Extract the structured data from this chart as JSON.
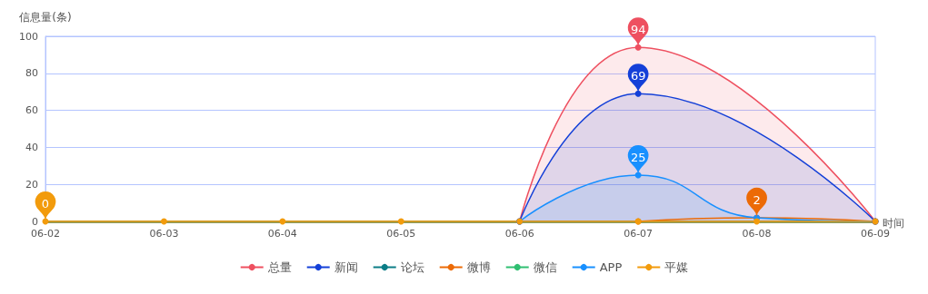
{
  "chart_data": {
    "type": "line",
    "xlabel": "时间",
    "ylabel": "信息量(条)",
    "categories": [
      "06-02",
      "06-03",
      "06-04",
      "06-05",
      "06-06",
      "06-07",
      "06-08",
      "06-09"
    ],
    "ylim": [
      0,
      100
    ],
    "yticks": [
      0,
      20,
      40,
      60,
      80,
      100
    ],
    "grid": "y",
    "legend": "bottom",
    "marker": "circle",
    "line_style": "solid",
    "series": [
      {
        "name": "总量",
        "type": "area",
        "color": "#ee5060",
        "values": [
          null,
          null,
          null,
          null,
          0,
          94,
          null,
          0
        ],
        "value_labels": [
          null,
          null,
          null,
          null,
          null,
          "94",
          null,
          null
        ]
      },
      {
        "name": "新闻",
        "type": "area",
        "color": "#1440d8",
        "values": [
          null,
          null,
          null,
          null,
          0,
          69,
          null,
          0
        ],
        "value_labels": [
          null,
          null,
          null,
          null,
          null,
          "69",
          null,
          null
        ]
      },
      {
        "name": "论坛",
        "type": "line",
        "color": "#0b7d86",
        "values": [
          null,
          null,
          null,
          null,
          null,
          null,
          null,
          null
        ]
      },
      {
        "name": "微博",
        "type": "line",
        "color": "#ec6a06",
        "values": [
          null,
          null,
          null,
          null,
          null,
          0,
          2,
          0
        ],
        "value_labels": [
          null,
          null,
          null,
          null,
          null,
          null,
          "2",
          null
        ]
      },
      {
        "name": "微信",
        "type": "line",
        "color": "#2fbf71",
        "values": [
          null,
          null,
          null,
          null,
          null,
          null,
          null,
          null
        ]
      },
      {
        "name": "APP",
        "type": "area",
        "color": "#1890ff",
        "values": [
          null,
          null,
          null,
          null,
          0,
          25,
          2,
          0
        ],
        "value_labels": [
          null,
          null,
          null,
          null,
          null,
          "25",
          null,
          null
        ]
      },
      {
        "name": "平媒",
        "type": "line",
        "color": "#f29b0c",
        "values": [
          0,
          0,
          0,
          0,
          0,
          0,
          0,
          0
        ],
        "value_labels": [
          "0",
          null,
          null,
          null,
          null,
          null,
          null,
          null
        ]
      }
    ]
  }
}
